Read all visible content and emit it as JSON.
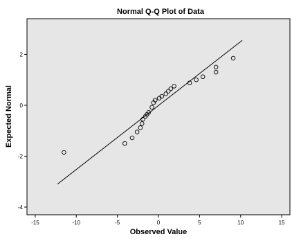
{
  "chart_data": {
    "type": "scatter",
    "title": "Normal Q-Q Plot of Data",
    "xlabel": "Observed Value",
    "ylabel": "Expected Normal",
    "xlim": [
      -16,
      16
    ],
    "ylim": [
      -4.3,
      3.4
    ],
    "x_ticks": [
      -15,
      -10,
      -5,
      0,
      5,
      10,
      15
    ],
    "y_ticks": [
      2,
      0,
      -2,
      -4
    ],
    "grid": false,
    "legend": "none",
    "plot_background": "#e6e6e6",
    "points": [
      {
        "x": -11.5,
        "y": -1.85
      },
      {
        "x": -4.1,
        "y": -1.5
      },
      {
        "x": -3.2,
        "y": -1.28
      },
      {
        "x": -2.6,
        "y": -1.05
      },
      {
        "x": -2.2,
        "y": -0.88
      },
      {
        "x": -2.0,
        "y": -0.72
      },
      {
        "x": -1.9,
        "y": -0.55
      },
      {
        "x": -1.6,
        "y": -0.44
      },
      {
        "x": -1.4,
        "y": -0.36
      },
      {
        "x": -1.2,
        "y": -0.28
      },
      {
        "x": -0.8,
        "y": -0.08
      },
      {
        "x": -0.6,
        "y": 0.1
      },
      {
        "x": -0.4,
        "y": 0.2
      },
      {
        "x": 0.1,
        "y": 0.28
      },
      {
        "x": 0.4,
        "y": 0.35
      },
      {
        "x": 0.9,
        "y": 0.45
      },
      {
        "x": 1.2,
        "y": 0.55
      },
      {
        "x": 1.5,
        "y": 0.65
      },
      {
        "x": 1.9,
        "y": 0.75
      },
      {
        "x": 3.8,
        "y": 0.88
      },
      {
        "x": 4.6,
        "y": 1.0
      },
      {
        "x": 5.4,
        "y": 1.12
      },
      {
        "x": 7.0,
        "y": 1.3
      },
      {
        "x": 7.0,
        "y": 1.5
      },
      {
        "x": 9.1,
        "y": 1.85
      }
    ],
    "reference_line": {
      "x1": -12.3,
      "y1": -3.1,
      "x2": 10.2,
      "y2": 2.55
    }
  }
}
